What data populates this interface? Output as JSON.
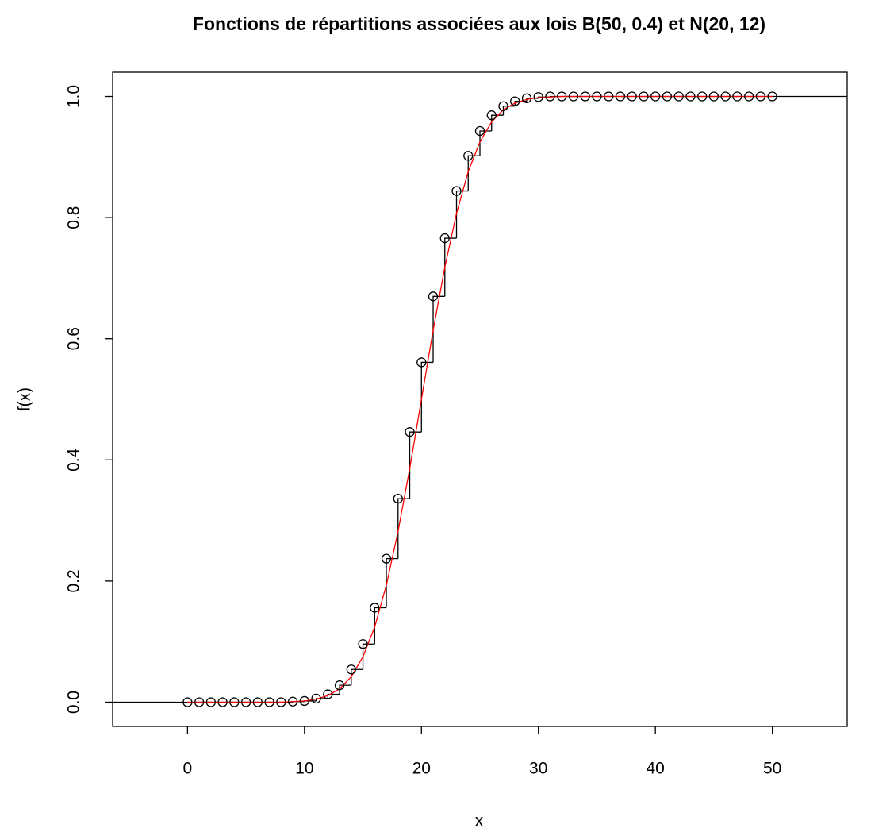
{
  "chart_data": {
    "type": "step_and_line",
    "title": "Fonctions de répartitions associées aux lois B(50, 0.4) et N(20, 12)",
    "x_label": "x",
    "y_label": "f(x)",
    "x": [
      0,
      1,
      2,
      3,
      4,
      5,
      6,
      7,
      8,
      9,
      10,
      11,
      12,
      13,
      14,
      15,
      16,
      17,
      18,
      19,
      20,
      21,
      22,
      23,
      24,
      25,
      26,
      27,
      28,
      29,
      30,
      31,
      32,
      33,
      34,
      35,
      36,
      37,
      38,
      39,
      40,
      41,
      42,
      43,
      44,
      45,
      46,
      47,
      48,
      49,
      50
    ],
    "series": [
      {
        "color": "#000000",
        "values": [
          0,
          0,
          0,
          0,
          0,
          0,
          0,
          0,
          0,
          0.001,
          0.002,
          0.006,
          0.013,
          0.028,
          0.054,
          0.096,
          0.156,
          0.237,
          0.336,
          0.446,
          0.561,
          0.67,
          0.766,
          0.844,
          0.902,
          0.943,
          0.969,
          0.984,
          0.992,
          0.997,
          0.999,
          1,
          1,
          1,
          1,
          1,
          1,
          1,
          1,
          1,
          1,
          1,
          1,
          1,
          1,
          1,
          1,
          1,
          1,
          1,
          1
        ]
      },
      {
        "color": "#ff0000",
        "values": [
          0,
          0,
          0,
          0,
          0,
          0,
          0,
          0,
          0,
          0.001,
          0.002,
          0.005,
          0.011,
          0.022,
          0.042,
          0.075,
          0.124,
          0.193,
          0.282,
          0.386,
          0.5,
          0.614,
          0.718,
          0.807,
          0.876,
          0.925,
          0.958,
          0.978,
          0.989,
          0.995,
          0.998,
          0.999,
          1,
          1,
          1,
          1,
          1,
          1,
          1,
          1,
          1,
          1,
          1,
          1,
          1,
          1,
          1,
          1,
          1,
          1,
          1
        ]
      }
    ],
    "xlim": [
      -6.4,
      56.4
    ],
    "ylim": [
      -0.04,
      1.04
    ],
    "xticks": [
      0,
      10,
      20,
      30,
      40,
      50
    ],
    "yticks": [
      {
        "value": 0,
        "label": "0.0"
      },
      0.2,
      0.4,
      0.6,
      0.8,
      {
        "value": 1,
        "label": "1.0"
      }
    ]
  }
}
